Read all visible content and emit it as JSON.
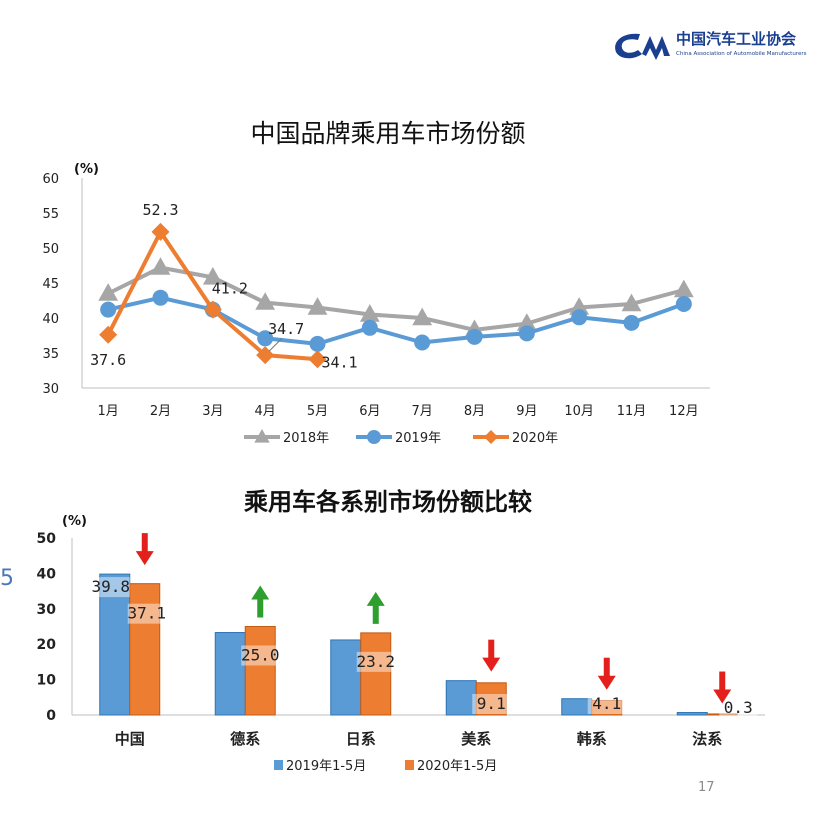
{
  "logo": {
    "name_cn": "中国汽车工业协会",
    "name_en": "China Association of Automobile Manufacturers",
    "color": "#1b3f8f"
  },
  "page_number": "17",
  "side_mark": "5",
  "chart_data": [
    {
      "type": "line",
      "title": "中国品牌乘用车市场份额",
      "ylabel": "(%)",
      "categories": [
        "1月",
        "2月",
        "3月",
        "4月",
        "5月",
        "6月",
        "7月",
        "8月",
        "9月",
        "10月",
        "11月",
        "12月"
      ],
      "ylim": [
        30,
        60
      ],
      "yticks": [
        30,
        35,
        40,
        45,
        50,
        55,
        60
      ],
      "legend_position": "bottom",
      "series": [
        {
          "name": "2018年",
          "color": "#a6a6a6",
          "marker": "triangle",
          "values": [
            43.5,
            47.2,
            45.8,
            42.2,
            41.5,
            40.5,
            40.0,
            38.3,
            39.2,
            41.5,
            42.0,
            44.0
          ]
        },
        {
          "name": "2019年",
          "color": "#5b9bd5",
          "marker": "circle",
          "values": [
            41.2,
            42.9,
            41.2,
            37.1,
            36.3,
            38.6,
            36.5,
            37.3,
            37.8,
            40.1,
            39.3,
            42.0
          ]
        },
        {
          "name": "2020年",
          "color": "#ed7d31",
          "marker": "diamond",
          "values": [
            37.6,
            52.3,
            41.2,
            34.7,
            34.1,
            null,
            null,
            null,
            null,
            null,
            null,
            null
          ]
        }
      ],
      "data_labels": [
        {
          "series": 2,
          "index": 0,
          "text": "37.6"
        },
        {
          "series": 2,
          "index": 1,
          "text": "52.3"
        },
        {
          "series": 2,
          "index": 2,
          "text": "41.2"
        },
        {
          "series": 2,
          "index": 3,
          "text": "34.7"
        },
        {
          "series": 2,
          "index": 4,
          "text": "34.1"
        }
      ]
    },
    {
      "type": "bar",
      "title": "乘用车各系别市场份额比较",
      "ylabel": "(%)",
      "categories": [
        "中国",
        "德系",
        "日系",
        "美系",
        "韩系",
        "法系"
      ],
      "ylim": [
        0,
        50
      ],
      "yticks": [
        0,
        10,
        20,
        30,
        40,
        50
      ],
      "legend_position": "bottom",
      "series": [
        {
          "name": "2019年1-5月",
          "color": "#5b9bd5",
          "values": [
            39.8,
            23.3,
            21.2,
            9.7,
            4.6,
            0.7
          ]
        },
        {
          "name": "2020年1-5月",
          "color": "#ed7d31",
          "values": [
            37.1,
            25.0,
            23.2,
            9.1,
            4.1,
            0.3
          ]
        }
      ],
      "data_labels": [
        {
          "series": 0,
          "index": 0,
          "text": "39.8"
        },
        {
          "series": 1,
          "index": 0,
          "text": "37.1"
        },
        {
          "series": 1,
          "index": 1,
          "text": "25.0"
        },
        {
          "series": 1,
          "index": 2,
          "text": "23.2"
        },
        {
          "series": 1,
          "index": 3,
          "text": "9.1"
        },
        {
          "series": 1,
          "index": 4,
          "text": "4.1"
        },
        {
          "series": 1,
          "index": 5,
          "text": "0.3"
        }
      ],
      "trend_arrows": [
        "down",
        "up",
        "up",
        "down",
        "down",
        "down"
      ],
      "arrow_colors": {
        "up": "#2e9e2e",
        "down": "#e3201b"
      }
    }
  ]
}
